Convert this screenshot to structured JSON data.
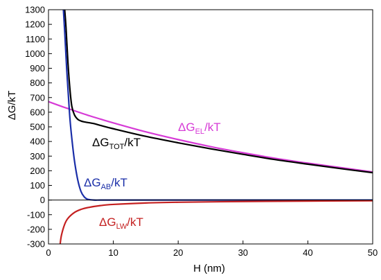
{
  "chart_data": {
    "type": "line",
    "xlabel": "H (nm)",
    "ylabel": "ΔG/kT",
    "xlim": [
      0,
      50
    ],
    "ylim": [
      -300,
      1300
    ],
    "xticks": [
      0,
      10,
      20,
      30,
      40,
      50
    ],
    "yticks": [
      -300,
      -200,
      -100,
      0,
      100,
      200,
      300,
      400,
      500,
      600,
      700,
      800,
      900,
      1000,
      1100,
      1200,
      1300
    ],
    "grid": false,
    "zero_line": true,
    "series": [
      {
        "name": "ΔG_EL/kT",
        "label_main": "ΔG",
        "label_sub": "EL",
        "label_tail": "/kT",
        "color": "#d63ad6",
        "x": [
          0,
          2,
          4,
          6,
          8,
          10,
          15,
          20,
          25,
          30,
          35,
          40,
          45,
          50
        ],
        "y": [
          672,
          640,
          610,
          580,
          553,
          527,
          466,
          413,
          365,
          323,
          285,
          252,
          222,
          192
        ]
      },
      {
        "name": "ΔG_TOT/kT",
        "label_main": "ΔG",
        "label_sub": "TOT",
        "label_tail": "/kT",
        "color": "#000000",
        "x": [
          2.5,
          2.7,
          3.0,
          3.3,
          3.6,
          4.0,
          4.5,
          5.0,
          5.5,
          6.0,
          7.0,
          8.0,
          10,
          15,
          20,
          25,
          30,
          35,
          40,
          45,
          50
        ],
        "y": [
          1300,
          1180,
          940,
          760,
          640,
          582,
          552,
          540,
          534,
          530,
          522,
          510,
          487,
          435,
          391,
          350,
          312,
          276,
          245,
          215,
          187
        ]
      },
      {
        "name": "ΔG_AB/kT",
        "label_main": "ΔG",
        "label_sub": "AB",
        "label_tail": "/kT",
        "color": "#1a2ea8",
        "x": [
          2.3,
          2.5,
          2.8,
          3.0,
          3.3,
          3.6,
          4.0,
          4.5,
          5.0,
          5.5,
          6.0,
          7.0,
          8.0,
          10,
          20,
          30,
          40,
          50
        ],
        "y": [
          1300,
          1150,
          900,
          760,
          560,
          420,
          270,
          140,
          60,
          22,
          6,
          0,
          0,
          0,
          0,
          0,
          0,
          0
        ]
      },
      {
        "name": "ΔG_LW/kT",
        "label_main": "ΔG",
        "label_sub": "LW",
        "label_tail": "/kT",
        "color": "#c42020",
        "x": [
          1.8,
          2.0,
          2.5,
          3.0,
          4.0,
          5.0,
          6.0,
          8.0,
          10,
          15,
          20,
          30,
          40,
          50
        ],
        "y": [
          -300,
          -240,
          -165,
          -125,
          -85,
          -64,
          -52,
          -38,
          -30,
          -20,
          -15,
          -10,
          -7,
          -5
        ]
      }
    ]
  }
}
